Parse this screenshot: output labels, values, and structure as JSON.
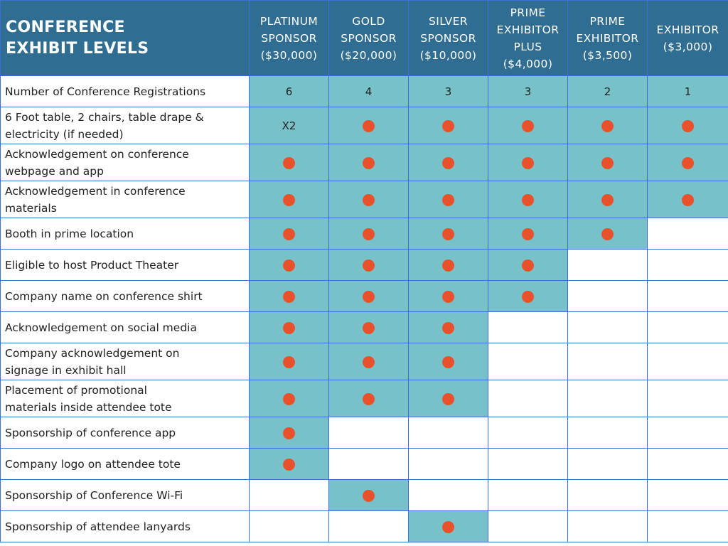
{
  "colors": {
    "header_bg": "#2f6e92",
    "included_bg": "#77c2c8",
    "dot": "#e9512a",
    "grid": "#3b6fd6"
  },
  "header": {
    "title_line1": "CONFERENCE",
    "title_line2": "EXHIBIT LEVELS",
    "levels": [
      {
        "name_lines": [
          "PLATINUM",
          "SPONSOR"
        ],
        "price": "($30,000)"
      },
      {
        "name_lines": [
          "GOLD",
          "SPONSOR"
        ],
        "price": "($20,000)"
      },
      {
        "name_lines": [
          "SILVER",
          "SPONSOR"
        ],
        "price": "($10,000)"
      },
      {
        "name_lines": [
          "PRIME",
          "EXHIBITOR",
          "PLUS"
        ],
        "price": "($4,000)"
      },
      {
        "name_lines": [
          "PRIME",
          "EXHIBITOR"
        ],
        "price": "($3,500)"
      },
      {
        "name_lines": [
          "EXHIBITOR"
        ],
        "price": "($3,000)"
      }
    ]
  },
  "rows": [
    {
      "label_lines": [
        "Number of Conference Registrations"
      ],
      "cells": [
        "6",
        "4",
        "3",
        "3",
        "2",
        "1"
      ]
    },
    {
      "label_lines": [
        "6 Foot table, 2 chairs, table drape &",
        "electricity (if needed)"
      ],
      "cells": [
        "X2",
        "dot",
        "dot",
        "dot",
        "dot",
        "dot"
      ]
    },
    {
      "label_lines": [
        "Acknowledgement on conference",
        "webpage and app"
      ],
      "cells": [
        "dot",
        "dot",
        "dot",
        "dot",
        "dot",
        "dot"
      ]
    },
    {
      "label_lines": [
        "Acknowledgement in conference",
        "materials"
      ],
      "cells": [
        "dot",
        "dot",
        "dot",
        "dot",
        "dot",
        "dot"
      ]
    },
    {
      "label_lines": [
        "Booth in prime location"
      ],
      "cells": [
        "dot",
        "dot",
        "dot",
        "dot",
        "dot",
        ""
      ]
    },
    {
      "label_lines": [
        "Eligible to host Product Theater"
      ],
      "cells": [
        "dot",
        "dot",
        "dot",
        "dot",
        "",
        ""
      ]
    },
    {
      "label_lines": [
        "Company name on conference shirt"
      ],
      "cells": [
        "dot",
        "dot",
        "dot",
        "dot",
        "",
        ""
      ]
    },
    {
      "label_lines": [
        "Acknowledgement on social media"
      ],
      "cells": [
        "dot",
        "dot",
        "dot",
        "",
        "",
        ""
      ]
    },
    {
      "label_lines": [
        "Company acknowledgement on",
        "signage in exhibit hall"
      ],
      "cells": [
        "dot",
        "dot",
        "dot",
        "",
        "",
        ""
      ]
    },
    {
      "label_lines": [
        "Placement of promotional",
        "materials inside attendee tote"
      ],
      "cells": [
        "dot",
        "dot",
        "dot",
        "",
        "",
        ""
      ]
    },
    {
      "label_lines": [
        "Sponsorship of conference app"
      ],
      "cells": [
        "dot",
        "",
        "",
        "",
        "",
        ""
      ]
    },
    {
      "label_lines": [
        "Company logo on attendee tote"
      ],
      "cells": [
        "dot",
        "",
        "",
        "",
        "",
        ""
      ]
    },
    {
      "label_lines": [
        "Sponsorship of Conference Wi-Fi"
      ],
      "cells": [
        "",
        "dot",
        "",
        "",
        "",
        ""
      ]
    },
    {
      "label_lines": [
        "Sponsorship of attendee lanyards"
      ],
      "cells": [
        "",
        "",
        "dot",
        "",
        "",
        ""
      ]
    }
  ]
}
